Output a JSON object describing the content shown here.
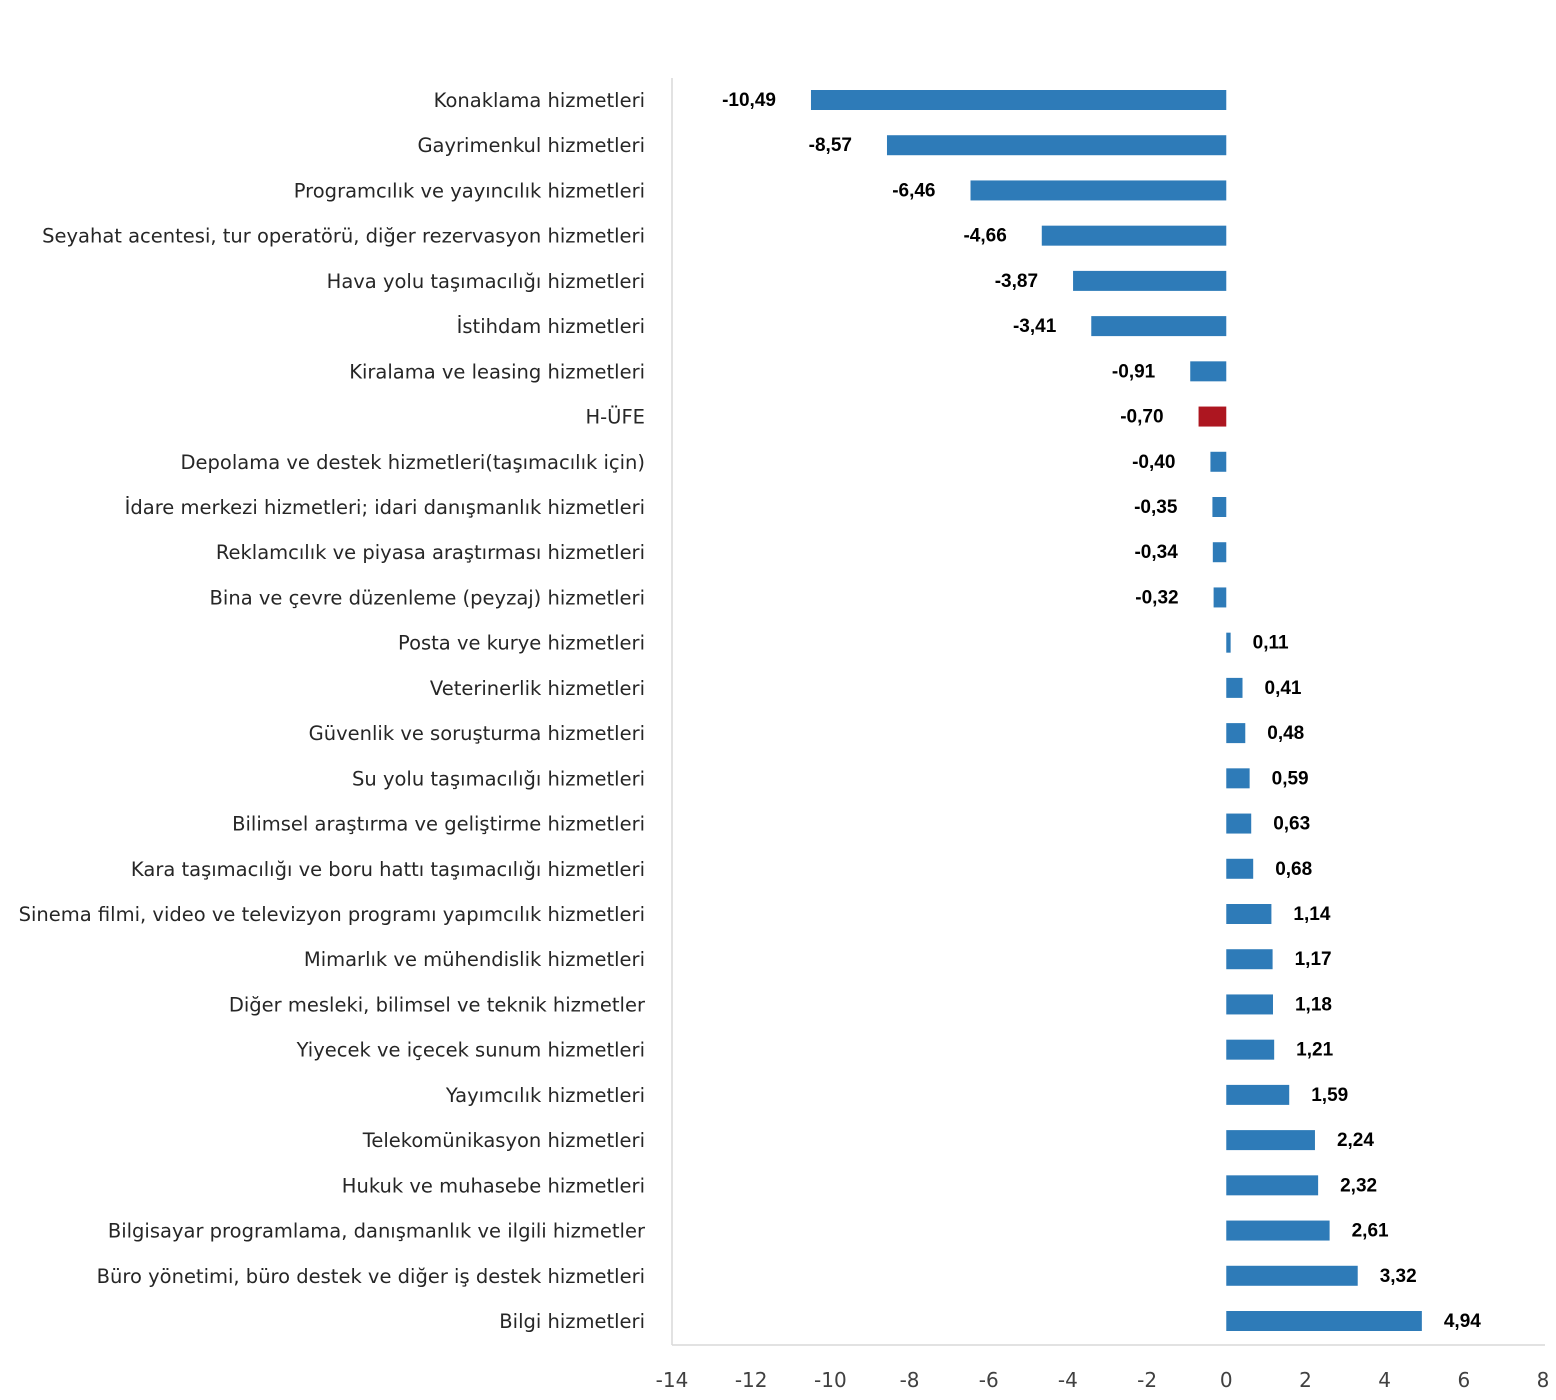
{
  "chart_data": {
    "type": "bar",
    "orientation": "horizontal",
    "title": "",
    "xlabel": "",
    "ylabel": "",
    "xlim": [
      -14,
      8
    ],
    "xticks": [
      -14,
      -12,
      -10,
      -8,
      -6,
      -4,
      -2,
      0,
      2,
      4,
      6,
      8
    ],
    "grid": false,
    "colors": {
      "default": "#2E7BB8",
      "highlight": "#AD1620"
    },
    "highlight_category": "H-ÜFE",
    "categories": [
      "Konaklama hizmetleri",
      "Gayrimenkul hizmetleri",
      "Programcılık ve yayıncılık hizmetleri",
      "Seyahat acentesi, tur operatörü, diğer rezervasyon hizmetleri",
      "Hava yolu taşımacılığı hizmetleri",
      "İstihdam hizmetleri",
      "Kiralama ve leasing hizmetleri",
      "H-ÜFE",
      "Depolama ve destek hizmetleri(taşımacılık için)",
      "İdare merkezi hizmetleri; idari danışmanlık hizmetleri",
      "Reklamcılık ve piyasa araştırması hizmetleri",
      "Bina ve çevre düzenleme (peyzaj) hizmetleri",
      "Posta ve kurye hizmetleri",
      "Veterinerlik hizmetleri",
      "Güvenlik ve soruşturma hizmetleri",
      "Su yolu taşımacılığı hizmetleri",
      "Bilimsel araştırma ve geliştirme hizmetleri",
      "Kara taşımacılığı ve boru hattı taşımacılığı hizmetleri",
      "Sinema filmi, video ve televizyon programı yapımcılık hizmetleri",
      "Mimarlık ve mühendislik hizmetleri",
      "Diğer mesleki, bilimsel ve teknik hizmetler",
      "Yiyecek ve içecek sunum hizmetleri",
      "Yayımcılık hizmetleri",
      "Telekomünikasyon hizmetleri",
      "Hukuk ve muhasebe hizmetleri",
      "Bilgisayar programlama, danışmanlık ve ilgili hizmetler",
      "Büro yönetimi, büro destek ve diğer iş destek hizmetleri",
      "Bilgi hizmetleri"
    ],
    "values": [
      -10.49,
      -8.57,
      -6.46,
      -4.66,
      -3.87,
      -3.41,
      -0.91,
      -0.7,
      -0.4,
      -0.35,
      -0.34,
      -0.32,
      0.11,
      0.41,
      0.48,
      0.59,
      0.63,
      0.68,
      1.14,
      1.17,
      1.18,
      1.21,
      1.59,
      2.24,
      2.32,
      2.61,
      3.32,
      4.94
    ],
    "value_labels": [
      "-10,49",
      "-8,57",
      "-6,46",
      "-4,66",
      "-3,87",
      "-3,41",
      "-0,91",
      "-0,70",
      "-0,40",
      "-0,35",
      "-0,34",
      "-0,32",
      "0,11",
      "0,41",
      "0,48",
      "0,59",
      "0,63",
      "0,68",
      "1,14",
      "1,17",
      "1,18",
      "1,21",
      "1,59",
      "2,24",
      "2,32",
      "2,61",
      "3,32",
      "4,94"
    ]
  }
}
